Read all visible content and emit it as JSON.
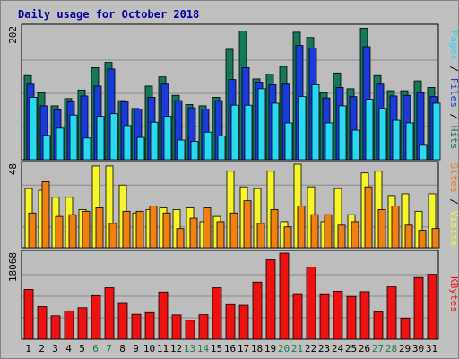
{
  "colors": {
    "background": "#c0c0c0",
    "panel": "#bdbdbd",
    "border": "#000000",
    "grid": "#8a8a8a",
    "title": "#0000a0",
    "weekday_label": "#000000",
    "weekend_label": "#1f7a4c",
    "hits": "#16785a",
    "files": "#1a3bd8",
    "pages": "#29d9f0",
    "visits": "#f5f52a",
    "sites": "#f08010",
    "kbytes": "#ee1111",
    "legend_separator": "#000000"
  },
  "chart_data": {
    "type": "bar",
    "title": "Daily usage for October 2018",
    "categories": [
      "1",
      "2",
      "3",
      "4",
      "5",
      "6",
      "7",
      "8",
      "9",
      "10",
      "11",
      "12",
      "13",
      "14",
      "15",
      "16",
      "17",
      "18",
      "19",
      "20",
      "21",
      "22",
      "23",
      "24",
      "25",
      "26",
      "27",
      "28",
      "29",
      "30",
      "31"
    ],
    "weekend_days": [
      "6",
      "7",
      "13",
      "14",
      "20",
      "21",
      "27",
      "28"
    ],
    "panels": [
      {
        "id": "requests",
        "ymax_label": "202",
        "ymax": 202,
        "legend": [
          "Hits",
          "Files",
          "Pages"
        ],
        "series": [
          {
            "name": "Hits",
            "color_key": "hits",
            "values": [
              128,
              102,
              82,
              93,
              106,
              140,
              148,
              90,
              78,
              112,
              126,
              98,
              84,
              82,
              95,
              168,
              196,
              123,
              130,
              142,
              194,
              186,
              102,
              132,
              108,
              200,
              128,
              105,
              105,
              120,
              110
            ]
          },
          {
            "name": "Files",
            "color_key": "files",
            "values": [
              115,
              82,
              76,
              88,
              97,
              112,
              138,
              88,
              77,
              95,
              115,
              90,
              79,
              77,
              90,
              122,
              140,
              118,
              114,
              115,
              174,
              170,
              94,
              110,
              96,
              172,
              115,
              97,
              98,
              102,
              96
            ]
          },
          {
            "name": "Pages",
            "color_key": "pages",
            "values": [
              95,
              37,
              48,
              68,
              33,
              66,
              70,
              52,
              34,
              57,
              66,
              30,
              28,
              42,
              36,
              83,
              83,
              108,
              86,
              56,
              96,
              114,
              56,
              82,
              45,
              92,
              78,
              60,
              56,
              22,
              86
            ]
          }
        ]
      },
      {
        "id": "visitors",
        "ymax_label": "48",
        "ymax": 48,
        "legend": [
          "Visits",
          "Sites"
        ],
        "series": [
          {
            "name": "Visits",
            "color_key": "visits",
            "values": [
              34,
              33,
              29,
              29,
              22,
              47,
              47,
              36,
              20,
              22,
              23,
              22,
              23,
              15,
              18,
              44,
              35,
              34,
              44,
              15,
              48,
              35,
              15,
              34,
              19,
              43,
              44,
              30,
              31,
              21,
              31
            ]
          },
          {
            "name": "Sites",
            "color_key": "sites",
            "values": [
              20,
              38,
              18,
              19,
              21,
              23,
              14,
              21,
              21,
              24,
              20,
              11,
              17,
              23,
              15,
              20,
              27,
              14,
              22,
              12,
              24,
              19,
              19,
              13,
              15,
              35,
              22,
              24,
              13,
              10,
              11
            ]
          }
        ]
      },
      {
        "id": "bandwidth",
        "ymax_label": "18068",
        "ymax": 18068,
        "legend": [
          "KBytes"
        ],
        "series": [
          {
            "name": "KBytes",
            "color_key": "kbytes",
            "values": [
              10460,
              6870,
              4930,
              5960,
              6630,
              9170,
              10810,
              7530,
              5240,
              5600,
              9930,
              5110,
              3990,
              5150,
              10810,
              7290,
              7140,
              12000,
              16650,
              18068,
              9390,
              15130,
              9380,
              10090,
              9000,
              10000,
              5730,
              10990,
              4460,
              12950,
              13620
            ]
          }
        ]
      }
    ]
  }
}
